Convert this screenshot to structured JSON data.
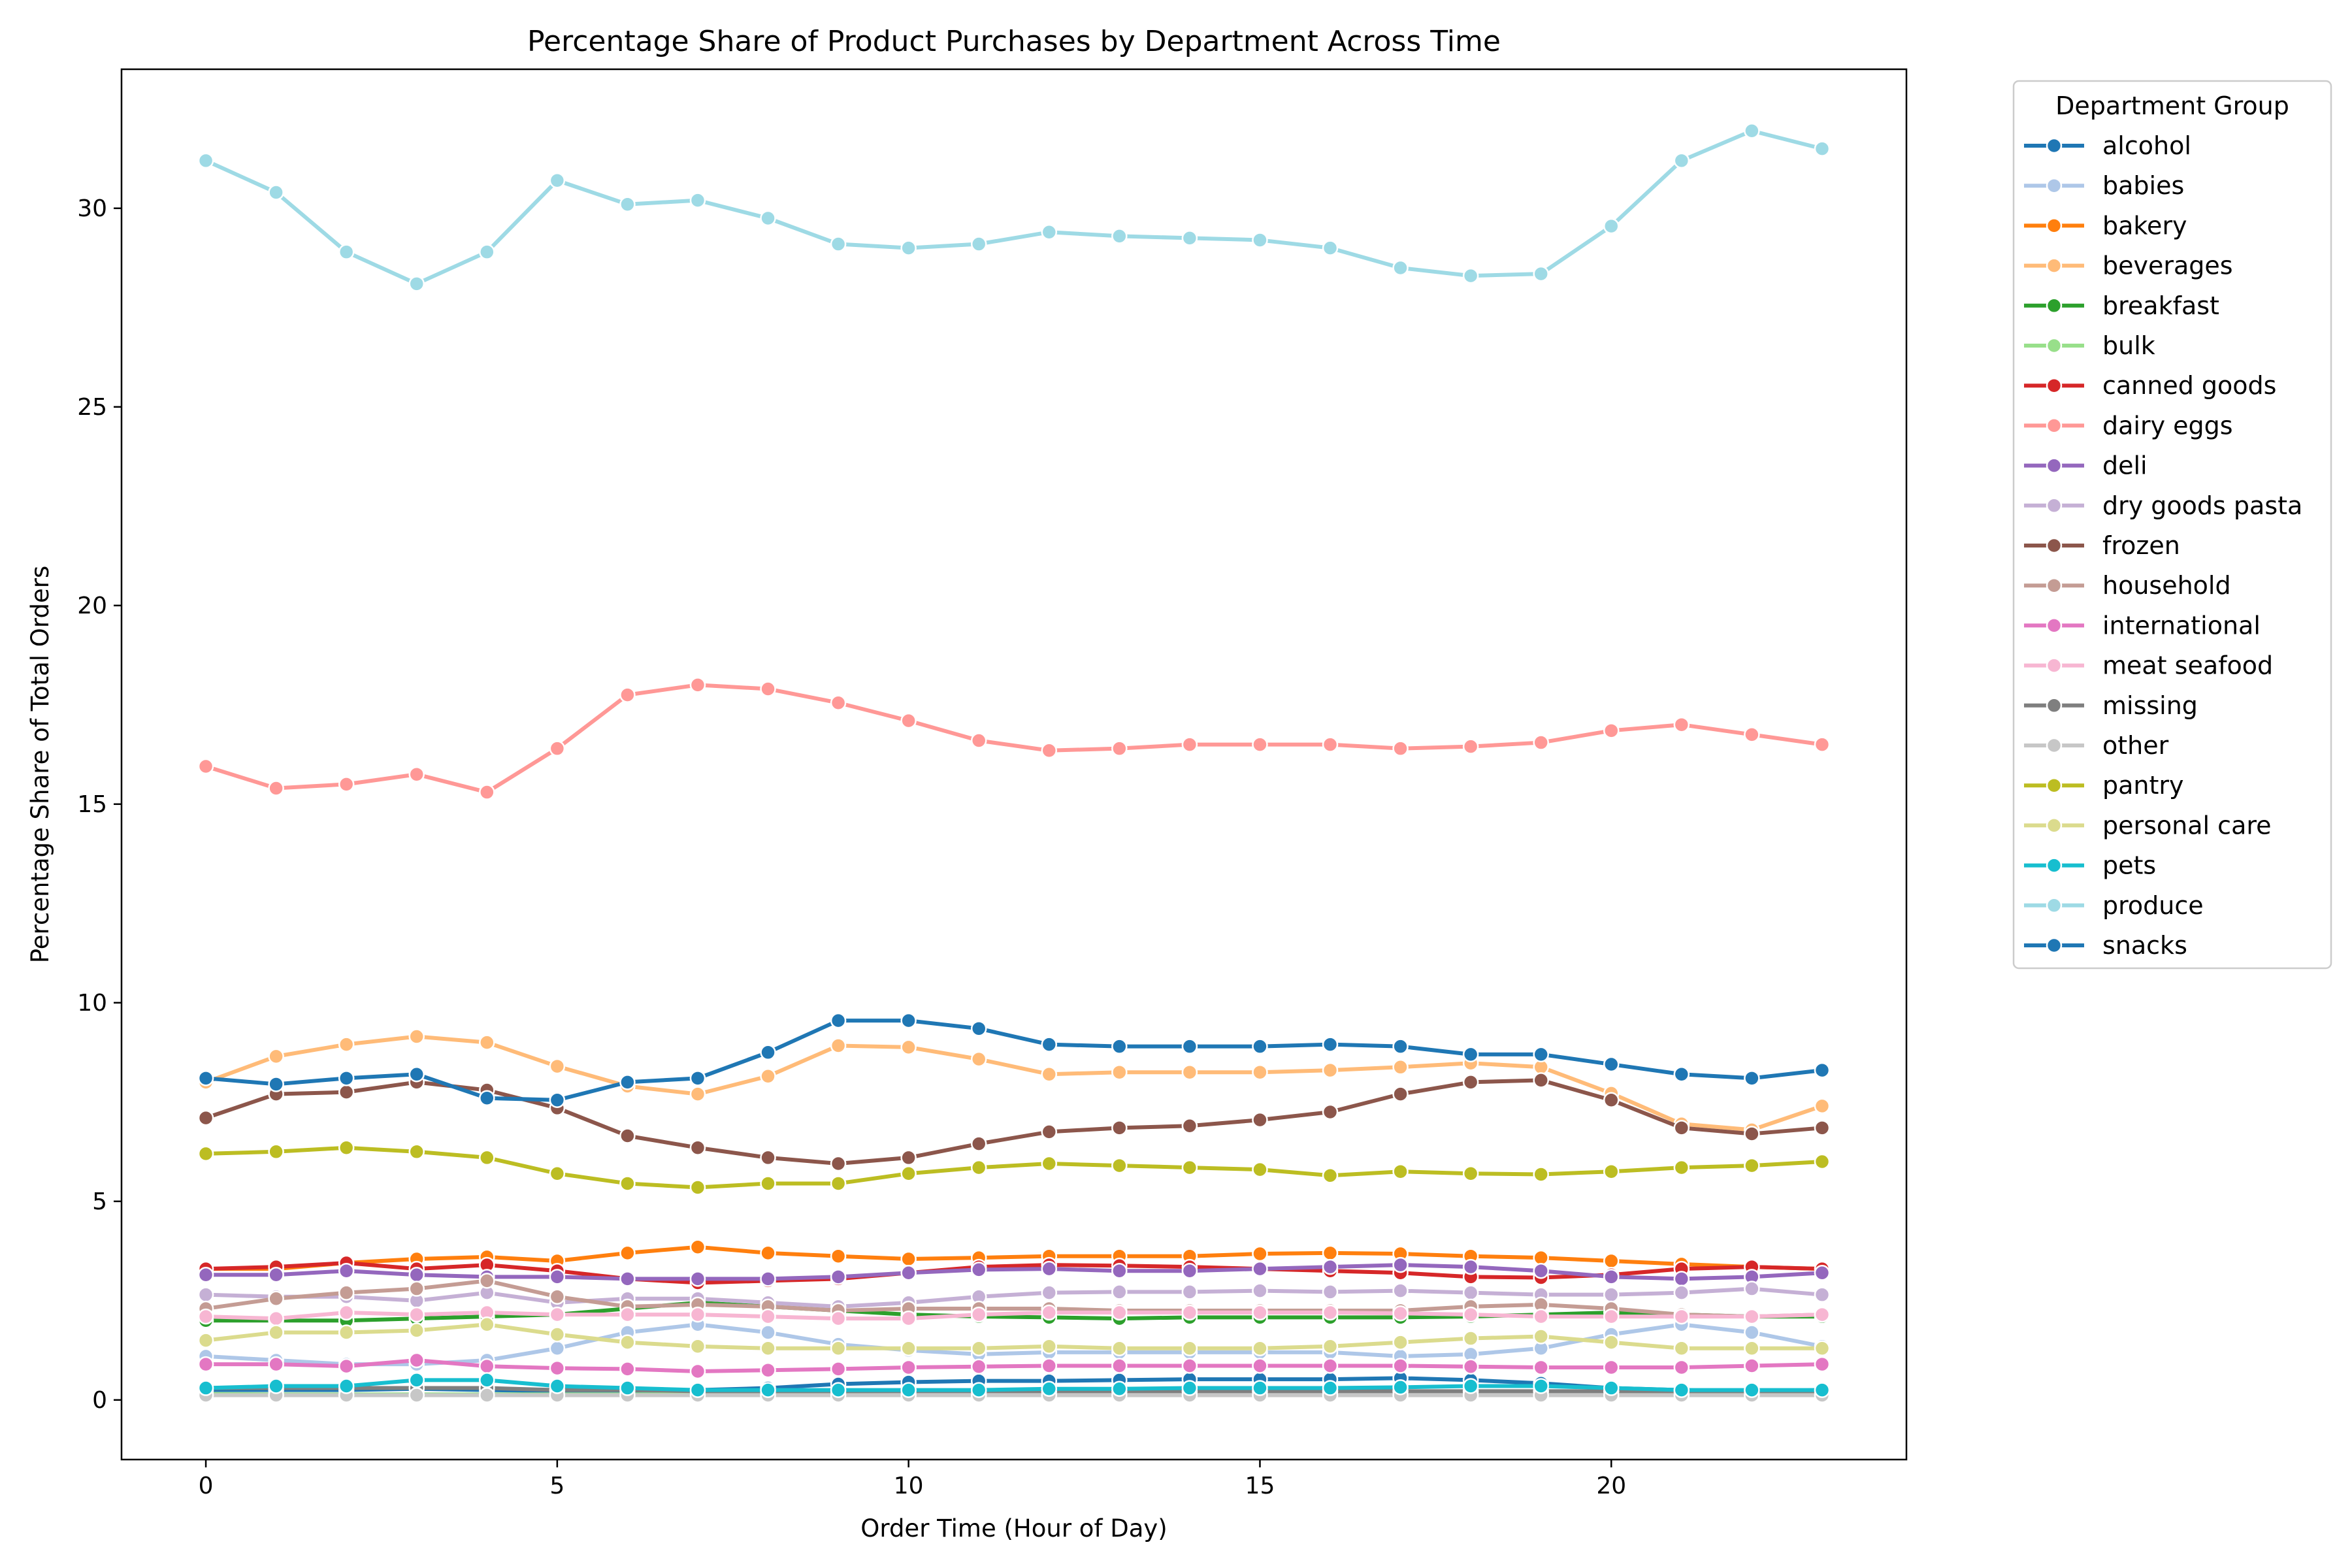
{
  "chart_data": {
    "type": "line",
    "title": "Percentage Share of Product Purchases by Department Across Time",
    "xlabel": "Order Time (Hour of Day)",
    "ylabel": "Percentage Share of Total Orders",
    "xlim": [
      -1.2,
      24.2
    ],
    "ylim": [
      -1.5,
      33.5
    ],
    "xticks": [
      0,
      5,
      10,
      15,
      20
    ],
    "yticks": [
      0,
      5,
      10,
      15,
      20,
      25,
      30
    ],
    "legend": {
      "title": "Department Group",
      "placement": "outside-right"
    },
    "grid": false,
    "x": [
      0,
      1,
      2,
      3,
      4,
      5,
      6,
      7,
      8,
      9,
      10,
      11,
      12,
      13,
      14,
      15,
      16,
      17,
      18,
      19,
      20,
      21,
      22,
      23
    ],
    "series": [
      {
        "name": "alcohol",
        "color": "#1f77b4",
        "values": [
          0.25,
          0.25,
          0.25,
          0.28,
          0.25,
          0.22,
          0.22,
          0.25,
          0.3,
          0.4,
          0.45,
          0.48,
          0.48,
          0.5,
          0.52,
          0.52,
          0.52,
          0.55,
          0.5,
          0.42,
          0.3,
          0.25,
          0.22,
          0.25
        ]
      },
      {
        "name": "babies",
        "color": "#aec7e8",
        "values": [
          1.1,
          1.0,
          0.9,
          0.9,
          1.0,
          1.3,
          1.7,
          1.9,
          1.7,
          1.4,
          1.25,
          1.15,
          1.2,
          1.2,
          1.2,
          1.2,
          1.2,
          1.1,
          1.15,
          1.3,
          1.65,
          1.9,
          1.7,
          1.35
        ]
      },
      {
        "name": "bakery",
        "color": "#ff7f0e",
        "values": [
          3.3,
          3.3,
          3.45,
          3.55,
          3.6,
          3.5,
          3.7,
          3.85,
          3.7,
          3.62,
          3.55,
          3.58,
          3.62,
          3.62,
          3.62,
          3.68,
          3.7,
          3.68,
          3.62,
          3.58,
          3.5,
          3.42,
          3.35,
          3.3
        ]
      },
      {
        "name": "beverages",
        "color": "#ffbb78",
        "values": [
          8.0,
          8.65,
          8.95,
          9.15,
          9.0,
          8.4,
          7.9,
          7.7,
          8.15,
          8.92,
          8.88,
          8.58,
          8.2,
          8.25,
          8.25,
          8.25,
          8.3,
          8.38,
          8.48,
          8.38,
          7.72,
          6.95,
          6.8,
          7.4
        ]
      },
      {
        "name": "breakfast",
        "color": "#2ca02c",
        "values": [
          2.0,
          2.0,
          2.0,
          2.05,
          2.1,
          2.15,
          2.3,
          2.45,
          2.35,
          2.25,
          2.15,
          2.1,
          2.08,
          2.05,
          2.08,
          2.08,
          2.08,
          2.08,
          2.1,
          2.15,
          2.2,
          2.15,
          2.1,
          2.1
        ]
      },
      {
        "name": "bulk",
        "color": "#98df8a",
        "values": [
          0.15,
          0.14,
          0.14,
          0.14,
          0.14,
          0.14,
          0.14,
          0.14,
          0.13,
          0.13,
          0.12,
          0.12,
          0.12,
          0.12,
          0.12,
          0.12,
          0.12,
          0.12,
          0.12,
          0.12,
          0.12,
          0.13,
          0.14,
          0.14
        ]
      },
      {
        "name": "canned goods",
        "color": "#d62728",
        "values": [
          3.3,
          3.35,
          3.45,
          3.3,
          3.4,
          3.25,
          3.05,
          2.95,
          3.0,
          3.05,
          3.2,
          3.35,
          3.4,
          3.38,
          3.35,
          3.3,
          3.25,
          3.2,
          3.1,
          3.08,
          3.15,
          3.3,
          3.35,
          3.3
        ]
      },
      {
        "name": "dairy eggs",
        "color": "#ff9896",
        "values": [
          15.95,
          15.4,
          15.5,
          15.75,
          15.3,
          16.4,
          17.75,
          18.0,
          17.9,
          17.55,
          17.1,
          16.6,
          16.35,
          16.4,
          16.5,
          16.5,
          16.5,
          16.4,
          16.45,
          16.55,
          16.85,
          17.0,
          16.75,
          16.5
        ]
      },
      {
        "name": "deli",
        "color": "#9467bd",
        "values": [
          3.15,
          3.15,
          3.25,
          3.15,
          3.1,
          3.1,
          3.05,
          3.05,
          3.05,
          3.1,
          3.2,
          3.28,
          3.3,
          3.25,
          3.25,
          3.3,
          3.35,
          3.4,
          3.35,
          3.25,
          3.1,
          3.05,
          3.1,
          3.2
        ]
      },
      {
        "name": "dry goods pasta",
        "color": "#c5b0d5",
        "values": [
          2.65,
          2.6,
          2.6,
          2.5,
          2.7,
          2.45,
          2.55,
          2.55,
          2.45,
          2.35,
          2.45,
          2.6,
          2.7,
          2.72,
          2.72,
          2.75,
          2.72,
          2.75,
          2.7,
          2.65,
          2.65,
          2.7,
          2.8,
          2.65
        ]
      },
      {
        "name": "frozen",
        "color": "#8c564b",
        "values": [
          7.1,
          7.7,
          7.75,
          8.0,
          7.8,
          7.35,
          6.65,
          6.35,
          6.1,
          5.95,
          6.1,
          6.45,
          6.75,
          6.85,
          6.9,
          7.05,
          7.25,
          7.7,
          8.0,
          8.05,
          7.55,
          6.85,
          6.7,
          6.85
        ]
      },
      {
        "name": "household",
        "color": "#c49c94",
        "values": [
          2.3,
          2.55,
          2.7,
          2.8,
          3.0,
          2.6,
          2.35,
          2.4,
          2.35,
          2.25,
          2.3,
          2.3,
          2.3,
          2.25,
          2.25,
          2.25,
          2.25,
          2.25,
          2.35,
          2.4,
          2.3,
          2.15,
          2.1,
          2.15
        ]
      },
      {
        "name": "international",
        "color": "#e377c2",
        "values": [
          0.9,
          0.9,
          0.85,
          1.0,
          0.85,
          0.8,
          0.78,
          0.72,
          0.75,
          0.78,
          0.82,
          0.84,
          0.86,
          0.86,
          0.86,
          0.86,
          0.86,
          0.86,
          0.84,
          0.82,
          0.82,
          0.82,
          0.86,
          0.9
        ]
      },
      {
        "name": "meat seafood",
        "color": "#f7b6d2",
        "values": [
          2.1,
          2.05,
          2.2,
          2.15,
          2.2,
          2.15,
          2.15,
          2.15,
          2.1,
          2.05,
          2.05,
          2.15,
          2.2,
          2.2,
          2.2,
          2.2,
          2.2,
          2.18,
          2.15,
          2.1,
          2.1,
          2.1,
          2.1,
          2.15
        ]
      },
      {
        "name": "missing",
        "color": "#7f7f7f",
        "values": [
          0.3,
          0.3,
          0.3,
          0.3,
          0.3,
          0.25,
          0.25,
          0.22,
          0.22,
          0.22,
          0.22,
          0.22,
          0.22,
          0.22,
          0.22,
          0.22,
          0.22,
          0.22,
          0.22,
          0.22,
          0.22,
          0.22,
          0.22,
          0.22
        ]
      },
      {
        "name": "other",
        "color": "#c7c7c7",
        "values": [
          0.12,
          0.12,
          0.12,
          0.12,
          0.12,
          0.12,
          0.12,
          0.12,
          0.12,
          0.12,
          0.12,
          0.12,
          0.12,
          0.12,
          0.12,
          0.12,
          0.12,
          0.12,
          0.12,
          0.12,
          0.12,
          0.12,
          0.12,
          0.12
        ]
      },
      {
        "name": "pantry",
        "color": "#bcbd22",
        "values": [
          6.2,
          6.25,
          6.35,
          6.25,
          6.1,
          5.7,
          5.45,
          5.35,
          5.45,
          5.45,
          5.7,
          5.85,
          5.95,
          5.9,
          5.85,
          5.8,
          5.65,
          5.75,
          5.7,
          5.68,
          5.75,
          5.85,
          5.9,
          6.0
        ]
      },
      {
        "name": "personal care",
        "color": "#dbdb8d",
        "values": [
          1.5,
          1.7,
          1.7,
          1.75,
          1.9,
          1.65,
          1.45,
          1.35,
          1.3,
          1.3,
          1.3,
          1.3,
          1.35,
          1.3,
          1.3,
          1.3,
          1.35,
          1.45,
          1.55,
          1.6,
          1.45,
          1.3,
          1.3,
          1.3
        ]
      },
      {
        "name": "pets",
        "color": "#17becf",
        "values": [
          0.3,
          0.35,
          0.35,
          0.5,
          0.5,
          0.35,
          0.3,
          0.25,
          0.25,
          0.25,
          0.25,
          0.25,
          0.28,
          0.28,
          0.3,
          0.3,
          0.3,
          0.32,
          0.35,
          0.35,
          0.3,
          0.25,
          0.25,
          0.25
        ]
      },
      {
        "name": "produce",
        "color": "#9edae5",
        "values": [
          31.2,
          30.4,
          28.9,
          28.1,
          28.9,
          30.7,
          30.1,
          30.2,
          29.75,
          29.1,
          29.0,
          29.1,
          29.4,
          29.3,
          29.25,
          29.2,
          29.0,
          28.5,
          28.3,
          28.35,
          29.55,
          31.2,
          31.95,
          31.5
        ]
      },
      {
        "name": "snacks",
        "color": "#1f77b4",
        "values": [
          8.1,
          7.95,
          8.1,
          8.2,
          7.6,
          7.55,
          8.0,
          8.1,
          8.75,
          9.55,
          9.55,
          9.35,
          8.95,
          8.9,
          8.9,
          8.9,
          8.95,
          8.9,
          8.7,
          8.7,
          8.45,
          8.2,
          8.1,
          8.3
        ]
      }
    ]
  }
}
